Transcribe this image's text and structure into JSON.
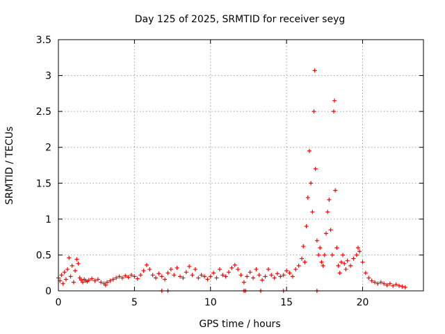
{
  "chart_data": {
    "type": "scatter",
    "title": "Day 125 of 2025, SRMTID for receiver seyg",
    "xlabel": "GPS time / hours",
    "ylabel": "SRMTID / TECUs",
    "xlim": [
      0,
      24
    ],
    "ylim": [
      0,
      3.5
    ],
    "xticks": [
      0,
      5,
      10,
      15,
      20
    ],
    "yticks": [
      0,
      0.5,
      1,
      1.5,
      2,
      2.5,
      3,
      3.5
    ],
    "xtick_labels": [
      "0",
      "5",
      "10",
      "15",
      "20"
    ],
    "ytick_labels": [
      "0",
      "0.5",
      "1",
      "1.5",
      "2",
      "2.5",
      "3",
      "3.5"
    ],
    "grid": true,
    "marker": "+",
    "color": "#ff0000",
    "series": [
      {
        "name": "SRMTID",
        "points": [
          [
            0.0,
            0.18
          ],
          [
            0.1,
            0.14
          ],
          [
            0.2,
            0.22
          ],
          [
            0.3,
            0.1
          ],
          [
            0.4,
            0.26
          ],
          [
            0.5,
            0.16
          ],
          [
            0.6,
            0.3
          ],
          [
            0.7,
            0.46
          ],
          [
            0.8,
            0.2
          ],
          [
            0.9,
            0.35
          ],
          [
            1.0,
            0.12
          ],
          [
            1.1,
            0.28
          ],
          [
            1.2,
            0.44
          ],
          [
            1.3,
            0.38
          ],
          [
            1.4,
            0.18
          ],
          [
            1.5,
            0.15
          ],
          [
            1.6,
            0.12
          ],
          [
            1.7,
            0.16
          ],
          [
            1.8,
            0.14
          ],
          [
            1.9,
            0.13
          ],
          [
            2.0,
            0.15
          ],
          [
            2.2,
            0.17
          ],
          [
            2.4,
            0.14
          ],
          [
            2.6,
            0.16
          ],
          [
            2.8,
            0.12
          ],
          [
            3.0,
            0.1
          ],
          [
            3.1,
            0.08
          ],
          [
            3.2,
            0.12
          ],
          [
            3.4,
            0.14
          ],
          [
            3.6,
            0.16
          ],
          [
            3.8,
            0.18
          ],
          [
            4.0,
            0.2
          ],
          [
            4.2,
            0.18
          ],
          [
            4.4,
            0.21
          ],
          [
            4.6,
            0.19
          ],
          [
            4.8,
            0.22
          ],
          [
            5.0,
            0.2
          ],
          [
            5.2,
            0.17
          ],
          [
            5.4,
            0.22
          ],
          [
            5.6,
            0.28
          ],
          [
            5.8,
            0.36
          ],
          [
            6.0,
            0.3
          ],
          [
            6.2,
            0.22
          ],
          [
            6.4,
            0.18
          ],
          [
            6.6,
            0.24
          ],
          [
            6.8,
            0.2
          ],
          [
            7.0,
            0.16
          ],
          [
            7.2,
            0.25
          ],
          [
            7.4,
            0.3
          ],
          [
            7.6,
            0.22
          ],
          [
            7.8,
            0.32
          ],
          [
            8.0,
            0.2
          ],
          [
            8.2,
            0.18
          ],
          [
            8.4,
            0.26
          ],
          [
            8.6,
            0.34
          ],
          [
            8.8,
            0.22
          ],
          [
            9.0,
            0.3
          ],
          [
            9.2,
            0.18
          ],
          [
            9.4,
            0.22
          ],
          [
            9.6,
            0.2
          ],
          [
            9.8,
            0.16
          ],
          [
            10.0,
            0.2
          ],
          [
            10.2,
            0.25
          ],
          [
            10.4,
            0.18
          ],
          [
            10.6,
            0.3
          ],
          [
            10.8,
            0.22
          ],
          [
            11.0,
            0.2
          ],
          [
            11.2,
            0.26
          ],
          [
            11.4,
            0.32
          ],
          [
            11.6,
            0.36
          ],
          [
            11.8,
            0.3
          ],
          [
            12.0,
            0.22
          ],
          [
            12.2,
            0.12
          ],
          [
            12.4,
            0.2
          ],
          [
            12.6,
            0.26
          ],
          [
            12.8,
            0.18
          ],
          [
            13.0,
            0.3
          ],
          [
            13.2,
            0.22
          ],
          [
            13.4,
            0.15
          ],
          [
            13.6,
            0.2
          ],
          [
            13.8,
            0.3
          ],
          [
            14.0,
            0.22
          ],
          [
            14.2,
            0.18
          ],
          [
            14.4,
            0.24
          ],
          [
            14.6,
            0.2
          ],
          [
            14.8,
            0.22
          ],
          [
            15.0,
            0.28
          ],
          [
            15.2,
            0.25
          ],
          [
            15.4,
            0.2
          ],
          [
            15.6,
            0.3
          ],
          [
            15.8,
            0.35
          ],
          [
            16.0,
            0.45
          ],
          [
            16.1,
            0.62
          ],
          [
            16.2,
            0.4
          ],
          [
            16.3,
            0.9
          ],
          [
            16.4,
            1.3
          ],
          [
            16.5,
            1.95
          ],
          [
            16.6,
            1.5
          ],
          [
            16.7,
            1.1
          ],
          [
            16.8,
            2.5
          ],
          [
            16.85,
            3.07
          ],
          [
            16.9,
            1.7
          ],
          [
            17.0,
            0.7
          ],
          [
            17.1,
            0.5
          ],
          [
            17.2,
            0.6
          ],
          [
            17.3,
            0.4
          ],
          [
            17.4,
            0.35
          ],
          [
            17.5,
            0.5
          ],
          [
            17.6,
            0.8
          ],
          [
            17.7,
            1.1
          ],
          [
            17.8,
            1.27
          ],
          [
            17.9,
            0.85
          ],
          [
            18.0,
            0.5
          ],
          [
            18.1,
            2.5
          ],
          [
            18.15,
            2.65
          ],
          [
            18.2,
            1.4
          ],
          [
            18.3,
            0.6
          ],
          [
            18.4,
            0.35
          ],
          [
            18.5,
            0.25
          ],
          [
            18.6,
            0.4
          ],
          [
            18.7,
            0.5
          ],
          [
            18.8,
            0.38
          ],
          [
            18.9,
            0.3
          ],
          [
            19.0,
            0.42
          ],
          [
            19.2,
            0.35
          ],
          [
            19.4,
            0.45
          ],
          [
            19.6,
            0.5
          ],
          [
            19.7,
            0.6
          ],
          [
            19.8,
            0.55
          ],
          [
            20.0,
            0.4
          ],
          [
            20.2,
            0.25
          ],
          [
            20.4,
            0.18
          ],
          [
            20.6,
            0.14
          ],
          [
            20.8,
            0.12
          ],
          [
            21.0,
            0.1
          ],
          [
            21.2,
            0.12
          ],
          [
            21.4,
            0.1
          ],
          [
            21.6,
            0.08
          ],
          [
            21.8,
            0.1
          ],
          [
            22.0,
            0.07
          ],
          [
            22.2,
            0.09
          ],
          [
            22.4,
            0.07
          ],
          [
            22.6,
            0.06
          ],
          [
            22.8,
            0.05
          ],
          [
            6.8,
            0.0
          ],
          [
            7.2,
            0.0
          ],
          [
            12.2,
            0.0
          ],
          [
            12.3,
            0.0
          ],
          [
            13.3,
            0.0
          ],
          [
            14.8,
            0.0
          ],
          [
            17.0,
            0.0
          ]
        ]
      }
    ]
  }
}
